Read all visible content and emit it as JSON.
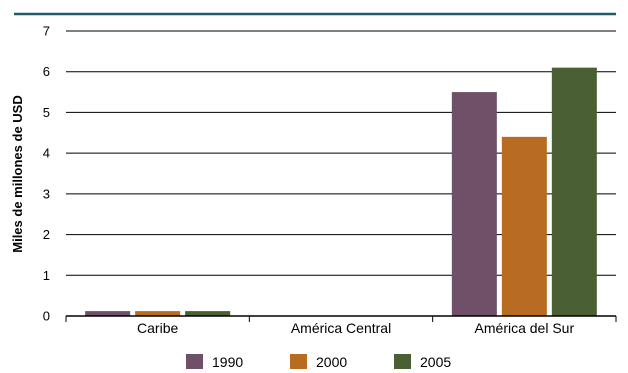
{
  "chart_data": {
    "type": "bar",
    "title": "",
    "xlabel": "",
    "ylabel": "Miles de millones de USD",
    "ylim": [
      0,
      7
    ],
    "yticks": [
      0,
      1,
      2,
      3,
      4,
      5,
      6,
      7
    ],
    "grid": true,
    "legend_position": "bottom",
    "categories": [
      "Caribe",
      "América Central",
      "América del Sur"
    ],
    "series": [
      {
        "name": "1990",
        "color": "#6e5068",
        "values": [
          0.12,
          0.0,
          5.5
        ]
      },
      {
        "name": "2000",
        "color": "#b86c22",
        "values": [
          0.12,
          0.0,
          4.4
        ]
      },
      {
        "name": "2005",
        "color": "#4a5f33",
        "values": [
          0.12,
          0.0,
          6.1
        ]
      }
    ],
    "colors": {
      "top_rule": "#1f5a6b",
      "grid": "#000000"
    }
  }
}
